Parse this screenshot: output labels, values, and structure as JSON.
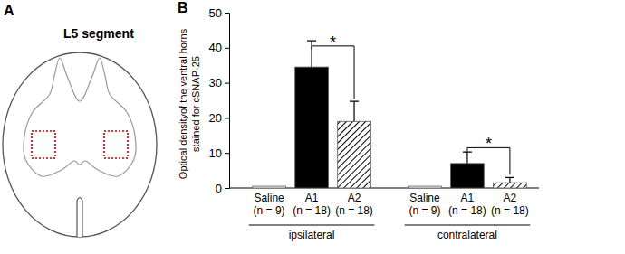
{
  "panel_a": {
    "label": "A",
    "title": "L5 segment"
  },
  "panel_b": {
    "label": "B"
  },
  "chart_data": {
    "type": "bar",
    "ylabel": [
      "Optical densityof the ventral horns",
      "stained for cSNAP-25"
    ],
    "categories": [
      "ipsilateral",
      "contralateral"
    ],
    "series": [
      {
        "name": "Saline (n = 9)",
        "color": "#ffffff",
        "values": [
          0.5,
          0.5
        ],
        "errors": [
          0,
          0
        ]
      },
      {
        "name": "A1 (n = 18)",
        "color": "#000000",
        "values": [
          34.5,
          7
        ],
        "errors": [
          7.5,
          3.3
        ]
      },
      {
        "name": "A2 (n = 18)",
        "color": "#000000",
        "marker": "hatch",
        "values": [
          19,
          1.5
        ],
        "errors": [
          5.7,
          1.5
        ]
      }
    ],
    "annotations": [
      {
        "text": "*",
        "category": 0,
        "from": 1,
        "to": 2,
        "y": 40.5
      },
      {
        "text": "*",
        "category": 1,
        "from": 1,
        "to": 2,
        "y": 11.5
      }
    ],
    "ylim": [
      0,
      50
    ],
    "yticks": [
      0,
      10,
      20,
      30,
      40,
      50
    ],
    "grid": false
  }
}
